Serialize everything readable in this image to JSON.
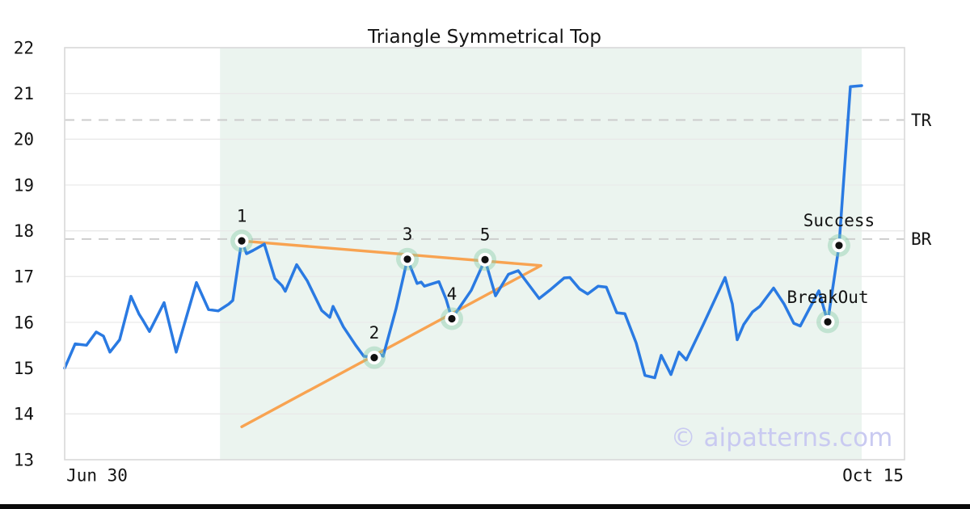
{
  "page": {
    "background": "#ffffff",
    "footer_bar_color": "#0a0a0a"
  },
  "chart_data": {
    "type": "line",
    "title": "Triangle Symmetrical Top",
    "watermark": "© aipatterns.com",
    "ylim": [
      13,
      22
    ],
    "yticks": [
      "13",
      "14",
      "15",
      "16",
      "17",
      "18",
      "19",
      "20",
      "21",
      "22"
    ],
    "xticks": [
      {
        "pos": 3.85,
        "label": "Jun 30"
      },
      {
        "pos": 96.25,
        "label": "Oct 15"
      }
    ],
    "grid": "horizontal",
    "legend": "none",
    "colors": {
      "price_line": "#2a7ae2",
      "trendline": "#f8a351",
      "pattern_zone": "#ebf4ef",
      "gridline": "#e9e9e9",
      "level_dash": "#cdcdcd",
      "plot_border": "#d9d9d9",
      "marker_halo": "rgba(137,203,166,0.42)",
      "marker_dot": "#111111",
      "watermark": "#c9caf1"
    },
    "series": {
      "name": "price",
      "points": [
        [
          0.0,
          15.0
        ],
        [
          1.25,
          15.53
        ],
        [
          2.6,
          15.5
        ],
        [
          3.75,
          15.79
        ],
        [
          4.62,
          15.7
        ],
        [
          5.39,
          15.35
        ],
        [
          6.54,
          15.62
        ],
        [
          7.89,
          16.57
        ],
        [
          8.85,
          16.18
        ],
        [
          9.34,
          16.04
        ],
        [
          10.1,
          15.8
        ],
        [
          11.84,
          16.43
        ],
        [
          13.28,
          15.35
        ],
        [
          15.69,
          16.87
        ],
        [
          17.13,
          16.28
        ],
        [
          18.29,
          16.25
        ],
        [
          19.54,
          16.4
        ],
        [
          20.02,
          16.48
        ],
        [
          21.08,
          17.78
        ],
        [
          21.66,
          17.5
        ],
        [
          22.43,
          17.57
        ],
        [
          23.77,
          17.71
        ],
        [
          25.02,
          16.96
        ],
        [
          25.89,
          16.8
        ],
        [
          26.27,
          16.68
        ],
        [
          27.62,
          17.26
        ],
        [
          28.87,
          16.91
        ],
        [
          30.61,
          16.26
        ],
        [
          31.57,
          16.11
        ],
        [
          31.95,
          16.35
        ],
        [
          33.2,
          15.9
        ],
        [
          34.65,
          15.5
        ],
        [
          35.61,
          15.26
        ],
        [
          36.86,
          15.23
        ],
        [
          37.54,
          15.3
        ],
        [
          37.92,
          15.26
        ],
        [
          39.46,
          16.3
        ],
        [
          40.81,
          17.38
        ],
        [
          41.96,
          16.85
        ],
        [
          42.44,
          16.88
        ],
        [
          42.83,
          16.79
        ],
        [
          44.56,
          16.89
        ],
        [
          45.43,
          16.5
        ],
        [
          46.1,
          16.08
        ],
        [
          48.41,
          16.7
        ],
        [
          50.05,
          17.37
        ],
        [
          51.3,
          16.58
        ],
        [
          52.84,
          17.05
        ],
        [
          54.0,
          17.13
        ],
        [
          56.5,
          16.52
        ],
        [
          57.75,
          16.7
        ],
        [
          59.48,
          16.97
        ],
        [
          60.15,
          16.98
        ],
        [
          61.31,
          16.73
        ],
        [
          62.27,
          16.62
        ],
        [
          63.52,
          16.79
        ],
        [
          64.49,
          16.77
        ],
        [
          65.74,
          16.21
        ],
        [
          66.7,
          16.19
        ],
        [
          68.05,
          15.55
        ],
        [
          69.1,
          14.84
        ],
        [
          70.26,
          14.79
        ],
        [
          71.03,
          15.28
        ],
        [
          72.18,
          14.86
        ],
        [
          73.15,
          15.35
        ],
        [
          74.01,
          15.18
        ],
        [
          76.03,
          15.95
        ],
        [
          78.63,
          16.98
        ],
        [
          79.5,
          16.4
        ],
        [
          80.08,
          15.62
        ],
        [
          80.85,
          15.95
        ],
        [
          81.91,
          16.23
        ],
        [
          82.77,
          16.35
        ],
        [
          84.41,
          16.75
        ],
        [
          85.66,
          16.4
        ],
        [
          86.81,
          15.98
        ],
        [
          87.58,
          15.92
        ],
        [
          89.8,
          16.69
        ],
        [
          90.86,
          16.01
        ],
        [
          92.2,
          17.68
        ],
        [
          93.55,
          21.15
        ],
        [
          94.9,
          21.17
        ]
      ]
    },
    "pattern_zone": {
      "start": 18.5,
      "end": 94.9
    },
    "trendlines": [
      {
        "name": "upper",
        "from": [
          21.08,
          17.78
        ],
        "to": [
          56.7,
          17.24
        ]
      },
      {
        "name": "lower",
        "from": [
          21.08,
          13.72
        ],
        "to": [
          56.7,
          17.24
        ]
      }
    ],
    "levels": [
      {
        "label": "TR",
        "value": 20.42
      },
      {
        "label": "BR",
        "value": 17.82
      }
    ],
    "points": [
      {
        "label": "1",
        "pos": 21.08,
        "price": 17.78
      },
      {
        "label": "2",
        "pos": 36.86,
        "price": 15.23
      },
      {
        "label": "3",
        "pos": 40.81,
        "price": 17.38
      },
      {
        "label": "4",
        "pos": 46.1,
        "price": 16.08
      },
      {
        "label": "5",
        "pos": 50.05,
        "price": 17.37
      },
      {
        "label": "BreakOut",
        "pos": 90.86,
        "price": 16.01
      },
      {
        "label": "Success",
        "pos": 92.2,
        "price": 17.68
      }
    ]
  }
}
